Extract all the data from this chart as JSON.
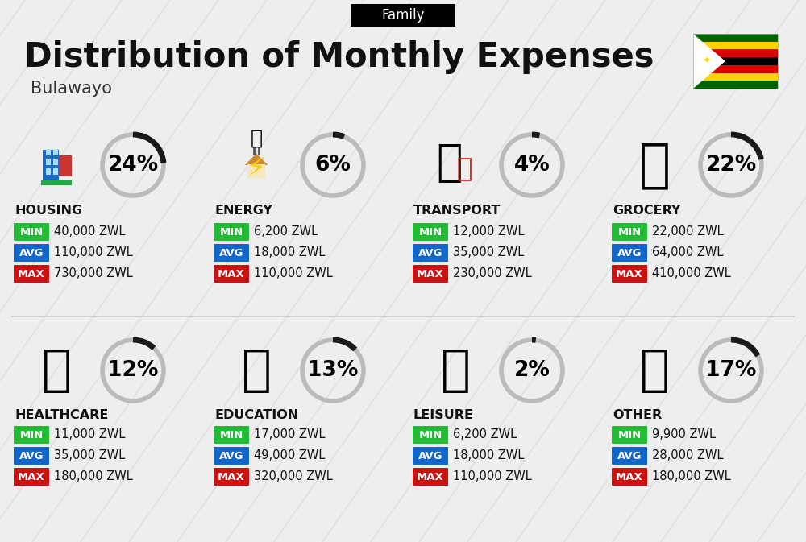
{
  "title": "Distribution of Monthly Expenses",
  "subtitle": "Bulawayo",
  "header_label": "Family",
  "bg_color": "#eeeeee",
  "categories": [
    {
      "name": "HOUSING",
      "pct": 24,
      "icon": "housing",
      "min": "40,000 ZWL",
      "avg": "110,000 ZWL",
      "max": "730,000 ZWL",
      "row": 0,
      "col": 0
    },
    {
      "name": "ENERGY",
      "pct": 6,
      "icon": "energy",
      "min": "6,200 ZWL",
      "avg": "18,000 ZWL",
      "max": "110,000 ZWL",
      "row": 0,
      "col": 1
    },
    {
      "name": "TRANSPORT",
      "pct": 4,
      "icon": "transport",
      "min": "12,000 ZWL",
      "avg": "35,000 ZWL",
      "max": "230,000 ZWL",
      "row": 0,
      "col": 2
    },
    {
      "name": "GROCERY",
      "pct": 22,
      "icon": "grocery",
      "min": "22,000 ZWL",
      "avg": "64,000 ZWL",
      "max": "410,000 ZWL",
      "row": 0,
      "col": 3
    },
    {
      "name": "HEALTHCARE",
      "pct": 12,
      "icon": "healthcare",
      "min": "11,000 ZWL",
      "avg": "35,000 ZWL",
      "max": "180,000 ZWL",
      "row": 1,
      "col": 0
    },
    {
      "name": "EDUCATION",
      "pct": 13,
      "icon": "education",
      "min": "17,000 ZWL",
      "avg": "49,000 ZWL",
      "max": "320,000 ZWL",
      "row": 1,
      "col": 1
    },
    {
      "name": "LEISURE",
      "pct": 2,
      "icon": "leisure",
      "min": "6,200 ZWL",
      "avg": "18,000 ZWL",
      "max": "110,000 ZWL",
      "row": 1,
      "col": 2
    },
    {
      "name": "OTHER",
      "pct": 17,
      "icon": "other",
      "min": "9,900 ZWL",
      "avg": "28,000 ZWL",
      "max": "180,000 ZWL",
      "row": 1,
      "col": 3
    }
  ],
  "color_min": "#22bb33",
  "color_avg": "#1166cc",
  "color_max": "#cc1111",
  "arc_color": "#1a1a1a",
  "arc_bg_color": "#bbbbbb",
  "title_fontsize": 30,
  "subtitle_fontsize": 15,
  "cat_fontsize": 11.5,
  "val_fontsize": 10.5,
  "pct_fontsize": 19,
  "header_fontsize": 12,
  "diagonal_color": "#d5d5d5",
  "diagonal_alpha": 0.6
}
